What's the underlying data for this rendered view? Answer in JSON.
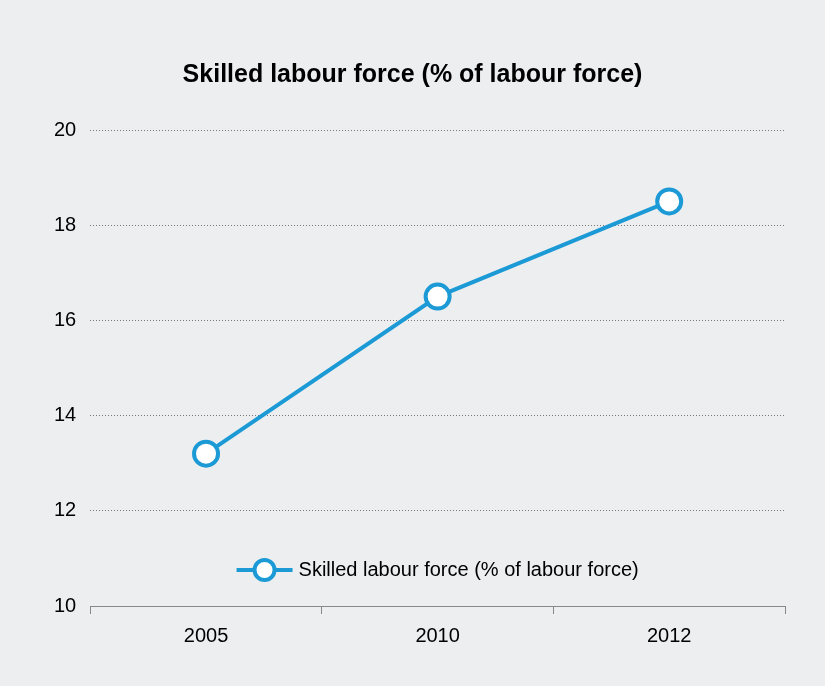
{
  "chart_data": {
    "type": "line",
    "title": "Skilled labour force (% of labour force)",
    "categories": [
      "2005",
      "2010",
      "2012"
    ],
    "series": [
      {
        "name": "Skilled labour force (% of labour force)",
        "color": "#1c9ad6",
        "values": [
          13.2,
          16.5,
          18.5
        ],
        "marker": "circle",
        "line_style": "solid"
      }
    ],
    "ylim": [
      10,
      20
    ],
    "yticks": [
      10,
      12,
      14,
      16,
      18,
      20
    ],
    "grid": true,
    "legend": "lower center"
  }
}
